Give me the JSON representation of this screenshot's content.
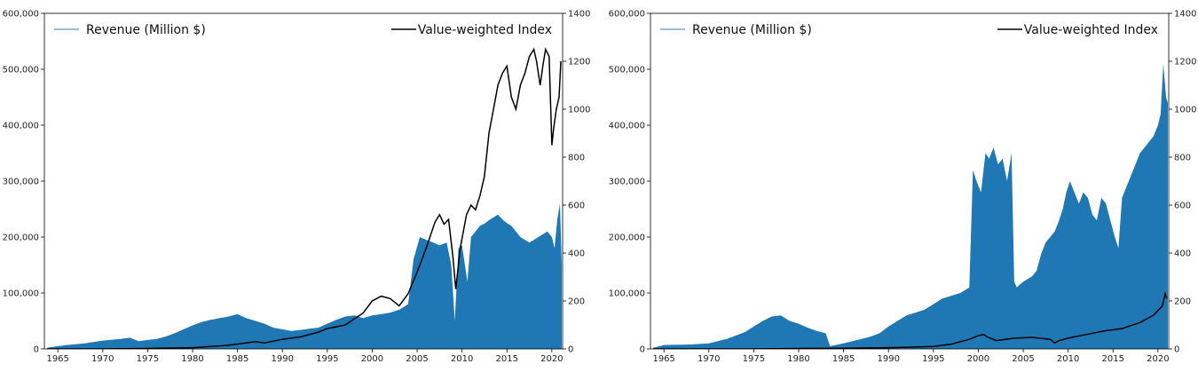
{
  "chart_data": [
    {
      "type": "area",
      "secondary_type": "line",
      "legend": [
        {
          "label": "Revenue (Million $)",
          "color": "#6fa8d6",
          "placement": "upper-left"
        },
        {
          "label": "Value-weighted Index",
          "color": "#000000",
          "placement": "upper-right"
        }
      ],
      "xlim": [
        1963.5,
        2021.2
      ],
      "ylim_left": [
        0,
        600000
      ],
      "ylim_right": [
        0,
        1400
      ],
      "x_ticks": [
        "1965",
        "1970",
        "1975",
        "1980",
        "1985",
        "1990",
        "1995",
        "2000",
        "2005",
        "2010",
        "2015",
        "2020"
      ],
      "y_left_ticks": [
        "0",
        "100,000",
        "200,000",
        "300,000",
        "400,000",
        "500,000",
        "600,000"
      ],
      "y_right_ticks": [
        "0",
        "200",
        "400",
        "600",
        "800",
        "1000",
        "1200",
        "1400"
      ],
      "series": [
        {
          "name": "Revenue (Million $)",
          "axis": "left",
          "color": "#1f77b4",
          "x": [
            1963.8,
            1965,
            1966,
            1968,
            1970,
            1972,
            1973,
            1974,
            1975,
            1976,
            1977,
            1978,
            1979,
            1980,
            1981,
            1982,
            1983,
            1984,
            1985,
            1986,
            1987,
            1988,
            1989,
            1990,
            1991,
            1992,
            1993,
            1994,
            1995,
            1996,
            1997,
            1998,
            1999,
            2000,
            2001,
            2002,
            2003,
            2004,
            2004.6,
            2005.3,
            2006,
            2006.8,
            2007.5,
            2008.3,
            2008.8,
            2009.2,
            2009.6,
            2010,
            2010.6,
            2011,
            2011.5,
            2012,
            2012.6,
            2013,
            2013.5,
            2014,
            2014.6,
            2015,
            2015.5,
            2016,
            2016.5,
            2017,
            2017.5,
            2018,
            2018.5,
            2019,
            2019.5,
            2020,
            2020.3,
            2020.6,
            2020.9,
            2021.1
          ],
          "y": [
            2000,
            5000,
            7000,
            10000,
            15000,
            18000,
            20000,
            14000,
            16000,
            18000,
            22000,
            28000,
            35000,
            42000,
            48000,
            52000,
            55000,
            58000,
            62000,
            55000,
            50000,
            45000,
            38000,
            35000,
            32000,
            34000,
            36000,
            38000,
            45000,
            52000,
            58000,
            60000,
            55000,
            60000,
            62000,
            65000,
            70000,
            80000,
            160000,
            200000,
            195000,
            190000,
            185000,
            190000,
            150000,
            50000,
            180000,
            185000,
            120000,
            200000,
            210000,
            220000,
            225000,
            230000,
            235000,
            240000,
            230000,
            225000,
            220000,
            210000,
            200000,
            195000,
            190000,
            195000,
            200000,
            205000,
            210000,
            200000,
            180000,
            230000,
            260000,
            150000
          ]
        },
        {
          "name": "Value-weighted Index",
          "axis": "right",
          "color": "#000000",
          "x": [
            1963.8,
            1970,
            1975,
            1980,
            1984,
            1987,
            1988,
            1990,
            1992,
            1994,
            1995,
            1997,
            1999,
            2000,
            2001,
            2002,
            2003,
            2004,
            2005,
            2006,
            2007,
            2007.5,
            2008,
            2008.5,
            2009,
            2009.3,
            2009.8,
            2010.5,
            2011,
            2011.5,
            2012,
            2012.5,
            2013,
            2013.5,
            2014,
            2014.5,
            2015,
            2015.5,
            2016,
            2016.5,
            2017,
            2017.5,
            2018,
            2018.3,
            2018.7,
            2019,
            2019.3,
            2019.7,
            2020,
            2020.2,
            2020.5,
            2020.8,
            2021
          ],
          "y": [
            0,
            0,
            2,
            5,
            15,
            30,
            25,
            40,
            50,
            70,
            85,
            100,
            150,
            200,
            220,
            210,
            180,
            230,
            320,
            420,
            530,
            560,
            520,
            540,
            380,
            250,
            420,
            560,
            600,
            580,
            640,
            720,
            900,
            1000,
            1100,
            1150,
            1180,
            1050,
            1000,
            1100,
            1150,
            1220,
            1250,
            1200,
            1100,
            1180,
            1250,
            1220,
            850,
            920,
            1000,
            1050,
            1200
          ]
        }
      ]
    },
    {
      "type": "area",
      "secondary_type": "line",
      "legend": [
        {
          "label": "Revenue (Million $)",
          "color": "#6fa8d6",
          "placement": "upper-left"
        },
        {
          "label": "Value-weighted Index",
          "color": "#000000",
          "placement": "upper-right"
        }
      ],
      "xlim": [
        1963.5,
        2021.2
      ],
      "ylim_left": [
        0,
        600000
      ],
      "ylim_right": [
        0,
        1400
      ],
      "x_ticks": [
        "1965",
        "1970",
        "1975",
        "1980",
        "1985",
        "1990",
        "1995",
        "2000",
        "2005",
        "2010",
        "2015",
        "2020"
      ],
      "y_left_ticks": [
        "0",
        "100,000",
        "200,000",
        "300,000",
        "400,000",
        "500,000",
        "600,000"
      ],
      "y_right_ticks": [
        "0",
        "200",
        "400",
        "600",
        "800",
        "1000",
        "1200",
        "1400"
      ],
      "series": [
        {
          "name": "Revenue (Million $)",
          "axis": "left",
          "color": "#1f77b4",
          "x": [
            1963.8,
            1965,
            1968,
            1970,
            1972,
            1974,
            1975,
            1976,
            1977,
            1978,
            1979,
            1980,
            1981,
            1982,
            1983,
            1983.5,
            1985,
            1986,
            1987,
            1988,
            1989,
            1990,
            1991,
            1992,
            1993,
            1994,
            1995,
            1996,
            1997,
            1998,
            1999,
            1999.4,
            1999.8,
            2000.3,
            2000.8,
            2001.2,
            2001.7,
            2002.2,
            2002.7,
            2003.2,
            2003.7,
            2004,
            2004.3,
            2004.6,
            2005,
            2005.5,
            2006,
            2006.5,
            2007,
            2007.5,
            2008,
            2008.5,
            2009,
            2009.4,
            2009.8,
            2010.2,
            2010.7,
            2011.2,
            2011.7,
            2012.2,
            2012.7,
            2013.2,
            2013.7,
            2014.2,
            2014.7,
            2015.2,
            2015.6,
            2016,
            2016.5,
            2017,
            2017.5,
            2018,
            2018.5,
            2019,
            2019.5,
            2020,
            2020.3,
            2020.6,
            2020.9,
            2021.1
          ],
          "y": [
            2000,
            7000,
            8000,
            10000,
            18000,
            30000,
            40000,
            50000,
            58000,
            60000,
            50000,
            45000,
            38000,
            32000,
            28000,
            5000,
            10000,
            14000,
            18000,
            22000,
            28000,
            40000,
            50000,
            60000,
            65000,
            70000,
            80000,
            90000,
            95000,
            100000,
            110000,
            320000,
            300000,
            280000,
            350000,
            340000,
            360000,
            330000,
            340000,
            300000,
            350000,
            120000,
            110000,
            115000,
            120000,
            125000,
            130000,
            140000,
            170000,
            190000,
            200000,
            210000,
            230000,
            250000,
            280000,
            300000,
            280000,
            260000,
            280000,
            270000,
            240000,
            230000,
            270000,
            260000,
            230000,
            200000,
            180000,
            270000,
            290000,
            310000,
            330000,
            350000,
            360000,
            370000,
            380000,
            400000,
            420000,
            510000,
            450000,
            440000
          ]
        },
        {
          "name": "Value-weighted Index",
          "axis": "right",
          "color": "#000000",
          "x": [
            1963.8,
            1970,
            1975,
            1980,
            1985,
            1990,
            1995,
            1997,
            1999,
            2000,
            2000.6,
            2001,
            2002,
            2003,
            2004,
            2006,
            2008,
            2008.5,
            2009,
            2010,
            2012,
            2014,
            2016,
            2018,
            2019,
            2019.5,
            2020,
            2020.5,
            2020.8,
            2021
          ],
          "y": [
            0,
            0,
            0,
            2,
            3,
            5,
            10,
            20,
            40,
            55,
            60,
            50,
            35,
            40,
            45,
            48,
            40,
            25,
            35,
            45,
            60,
            75,
            85,
            110,
            130,
            140,
            160,
            180,
            230,
            210
          ]
        }
      ]
    }
  ]
}
